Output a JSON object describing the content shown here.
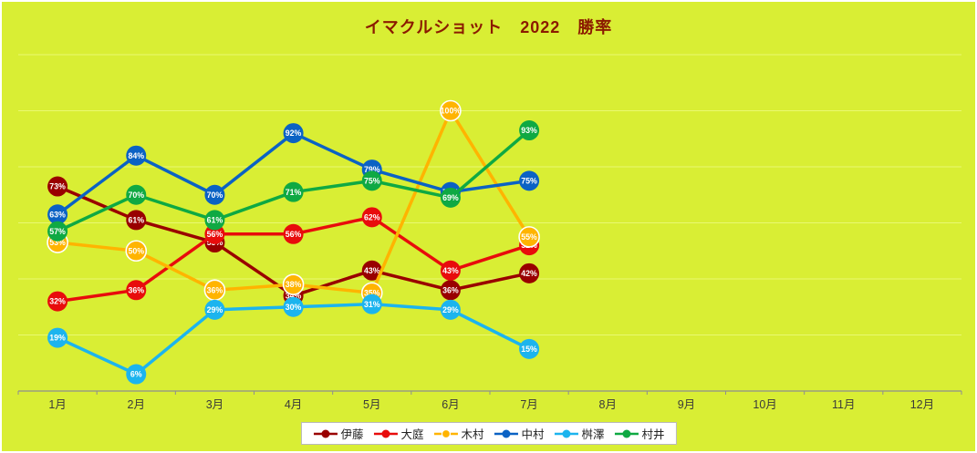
{
  "title": "イマクルショット　2022　勝率",
  "colors": {
    "background": "#d9ee34",
    "title": "#8b1a00",
    "grid": "#e9f872",
    "axis": "#8f8f8f",
    "month_label": "#3a3a3a",
    "data_label_text": "#ffffff",
    "legend_bg": "#ffffff",
    "legend_border": "#b9b9b9"
  },
  "chart_data": {
    "type": "line",
    "title": "イマクルショット　2022　勝率",
    "categories": [
      "1月",
      "2月",
      "3月",
      "4月",
      "5月",
      "6月",
      "7月",
      "8月",
      "9月",
      "10月",
      "11月",
      "12月"
    ],
    "series": [
      {
        "name": "伊藤",
        "key": "ito",
        "color": "#990000",
        "marker_stroke": "",
        "values": [
          73,
          61,
          53,
          34,
          43,
          36,
          42,
          null,
          null,
          null,
          null,
          null
        ]
      },
      {
        "name": "大庭",
        "key": "oba",
        "color": "#e80c0c",
        "marker_stroke": "",
        "values": [
          32,
          36,
          56,
          56,
          62,
          43,
          52,
          null,
          null,
          null,
          null,
          null
        ]
      },
      {
        "name": "木村",
        "key": "kimura",
        "color": "#ffb400",
        "marker_stroke": "#ffffff",
        "values": [
          53,
          50,
          36,
          38,
          35,
          100,
          55,
          null,
          null,
          null,
          null,
          null
        ]
      },
      {
        "name": "中村",
        "key": "nakamura",
        "color": "#0b62c4",
        "marker_stroke": "",
        "values": [
          63,
          84,
          70,
          92,
          79,
          71,
          75,
          null,
          null,
          null,
          null,
          null
        ]
      },
      {
        "name": "桝澤",
        "key": "masuzawa",
        "color": "#1cb4ee",
        "marker_stroke": "",
        "values": [
          19,
          6,
          29,
          30,
          31,
          29,
          15,
          null,
          null,
          null,
          null,
          null
        ]
      },
      {
        "name": "村井",
        "key": "murai",
        "color": "#0fa943",
        "marker_stroke": "",
        "values": [
          57,
          70,
          61,
          71,
          75,
          69,
          93,
          null,
          null,
          null,
          null,
          null
        ]
      }
    ],
    "ylim": [
      0,
      120
    ],
    "y_grid_interval": 20,
    "grid": true,
    "data_labels": "percent",
    "legend_position": "bottom"
  }
}
